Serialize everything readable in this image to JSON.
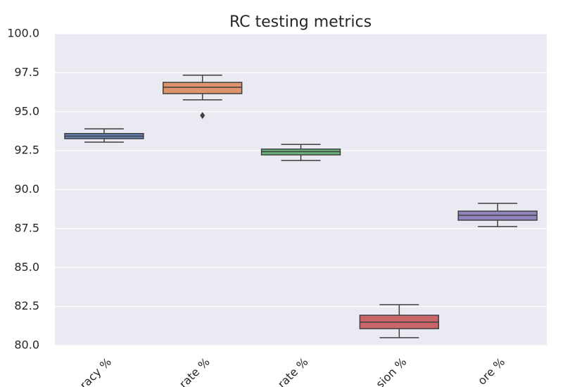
{
  "chart_data": {
    "type": "box",
    "title": "RC testing metrics",
    "categories": [
      "racy %",
      "rate %",
      "rate %",
      "sion %",
      "ore %"
    ],
    "colors": [
      "#4c72b0",
      "#dd8452",
      "#55a868",
      "#c44e52",
      "#8172b3"
    ],
    "boxes": [
      {
        "whislo": 93.05,
        "q1": 93.27,
        "med": 93.43,
        "q3": 93.6,
        "whishi": 93.9,
        "fliers": []
      },
      {
        "whislo": 95.76,
        "q1": 96.16,
        "med": 96.57,
        "q3": 96.88,
        "whishi": 97.34,
        "fliers": [
          94.76
        ]
      },
      {
        "whislo": 91.87,
        "q1": 92.23,
        "med": 92.44,
        "q3": 92.6,
        "whishi": 92.9,
        "fliers": []
      },
      {
        "whislo": 80.5,
        "q1": 81.08,
        "med": 81.5,
        "q3": 81.94,
        "whishi": 82.62,
        "fliers": []
      },
      {
        "whislo": 87.63,
        "q1": 88.04,
        "med": 88.35,
        "q3": 88.62,
        "whishi": 89.12,
        "fliers": []
      }
    ],
    "ylim": [
      80,
      100
    ],
    "yticks": [
      {
        "value": 80,
        "label": "80.0"
      },
      82.5,
      {
        "value": 85,
        "label": "85.0"
      },
      87.5,
      {
        "value": 90,
        "label": "90.0"
      },
      92.5,
      {
        "value": 95,
        "label": "95.0"
      },
      97.5,
      {
        "value": 100,
        "label": "100.0"
      }
    ],
    "grid": true
  }
}
